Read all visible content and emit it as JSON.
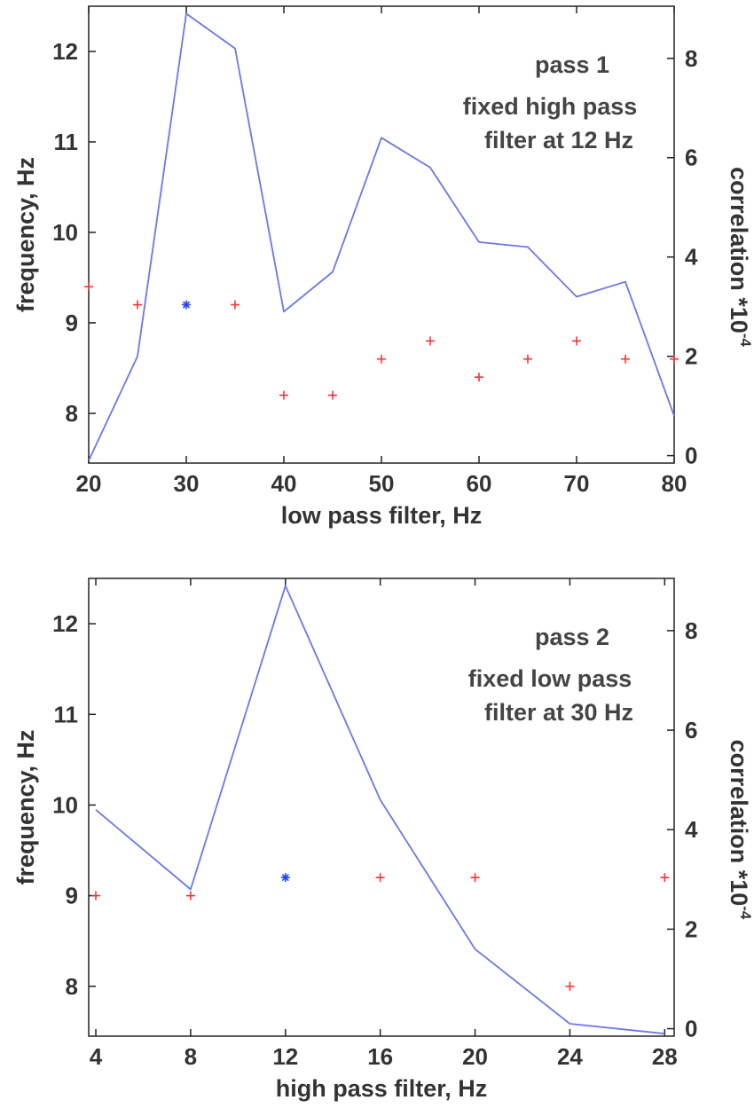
{
  "chart_data": [
    {
      "type": "line",
      "panel": "pass-1",
      "xlabel": "low pass filter,  Hz",
      "ylabel": "frequency, Hz",
      "ylabel_right": "correlation *10",
      "ylabel_right_exp": "-4",
      "annotations": [
        "pass 1",
        "fixed high pass",
        "filter at 12 Hz"
      ],
      "xlim": [
        20,
        80
      ],
      "ylim": [
        7.45,
        12.5
      ],
      "ylim_right": [
        -0.15,
        9.05
      ],
      "x_ticks": [
        20,
        30,
        40,
        50,
        60,
        70,
        80
      ],
      "y_ticks": [
        8,
        9,
        10,
        11,
        12
      ],
      "y_ticks_right": [
        0,
        2,
        4,
        6,
        8
      ],
      "grid": false,
      "series": [
        {
          "kind": "markers",
          "axis": "left",
          "color": "#ff3333",
          "marker": "plus",
          "x": [
            20,
            25,
            35,
            40,
            45,
            50,
            55,
            60,
            65,
            70,
            75,
            80
          ],
          "y": [
            9.4,
            9.2,
            9.2,
            8.2,
            8.2,
            8.6,
            8.8,
            8.4,
            8.6,
            8.8,
            8.6,
            8.6
          ]
        },
        {
          "kind": "markers",
          "axis": "left",
          "color": "#2244ff",
          "marker": "star",
          "x": [
            30
          ],
          "y": [
            9.2
          ]
        },
        {
          "kind": "line",
          "axis": "right",
          "color": "#6a78e8",
          "x": [
            20,
            25,
            30,
            35,
            40,
            45,
            50,
            55,
            60,
            65,
            70,
            75,
            80
          ],
          "y": [
            -0.1,
            2.0,
            8.9,
            8.2,
            2.9,
            3.7,
            6.4,
            5.8,
            4.3,
            4.2,
            3.2,
            3.5,
            0.8
          ]
        }
      ]
    },
    {
      "type": "line",
      "panel": "pass-2",
      "xlabel": "high pass filter, Hz",
      "ylabel": "frequency, Hz",
      "ylabel_right": "correlation *10",
      "ylabel_right_exp": "-4",
      "annotations": [
        "pass 2",
        "fixed low pass",
        "filter at 30 Hz"
      ],
      "xlim": [
        3.7,
        28.4
      ],
      "ylim": [
        7.45,
        12.5
      ],
      "ylim_right": [
        -0.15,
        9.05
      ],
      "x_ticks": [
        4,
        8,
        12,
        16,
        20,
        24,
        28
      ],
      "y_ticks": [
        8,
        9,
        10,
        11,
        12
      ],
      "y_ticks_right": [
        0,
        2,
        4,
        6,
        8
      ],
      "grid": false,
      "series": [
        {
          "kind": "markers",
          "axis": "left",
          "color": "#ff3333",
          "marker": "plus",
          "x": [
            4,
            8,
            16,
            20,
            24,
            28
          ],
          "y": [
            9.0,
            9.0,
            9.2,
            9.2,
            8.0,
            9.2
          ]
        },
        {
          "kind": "markers",
          "axis": "left",
          "color": "#2244ff",
          "marker": "star",
          "x": [
            12
          ],
          "y": [
            9.2
          ]
        },
        {
          "kind": "line",
          "axis": "right",
          "color": "#6a78e8",
          "x": [
            4,
            8,
            12,
            16,
            20,
            24,
            28
          ],
          "y": [
            4.4,
            2.8,
            8.9,
            4.6,
            1.6,
            0.1,
            -0.1
          ]
        }
      ]
    }
  ]
}
